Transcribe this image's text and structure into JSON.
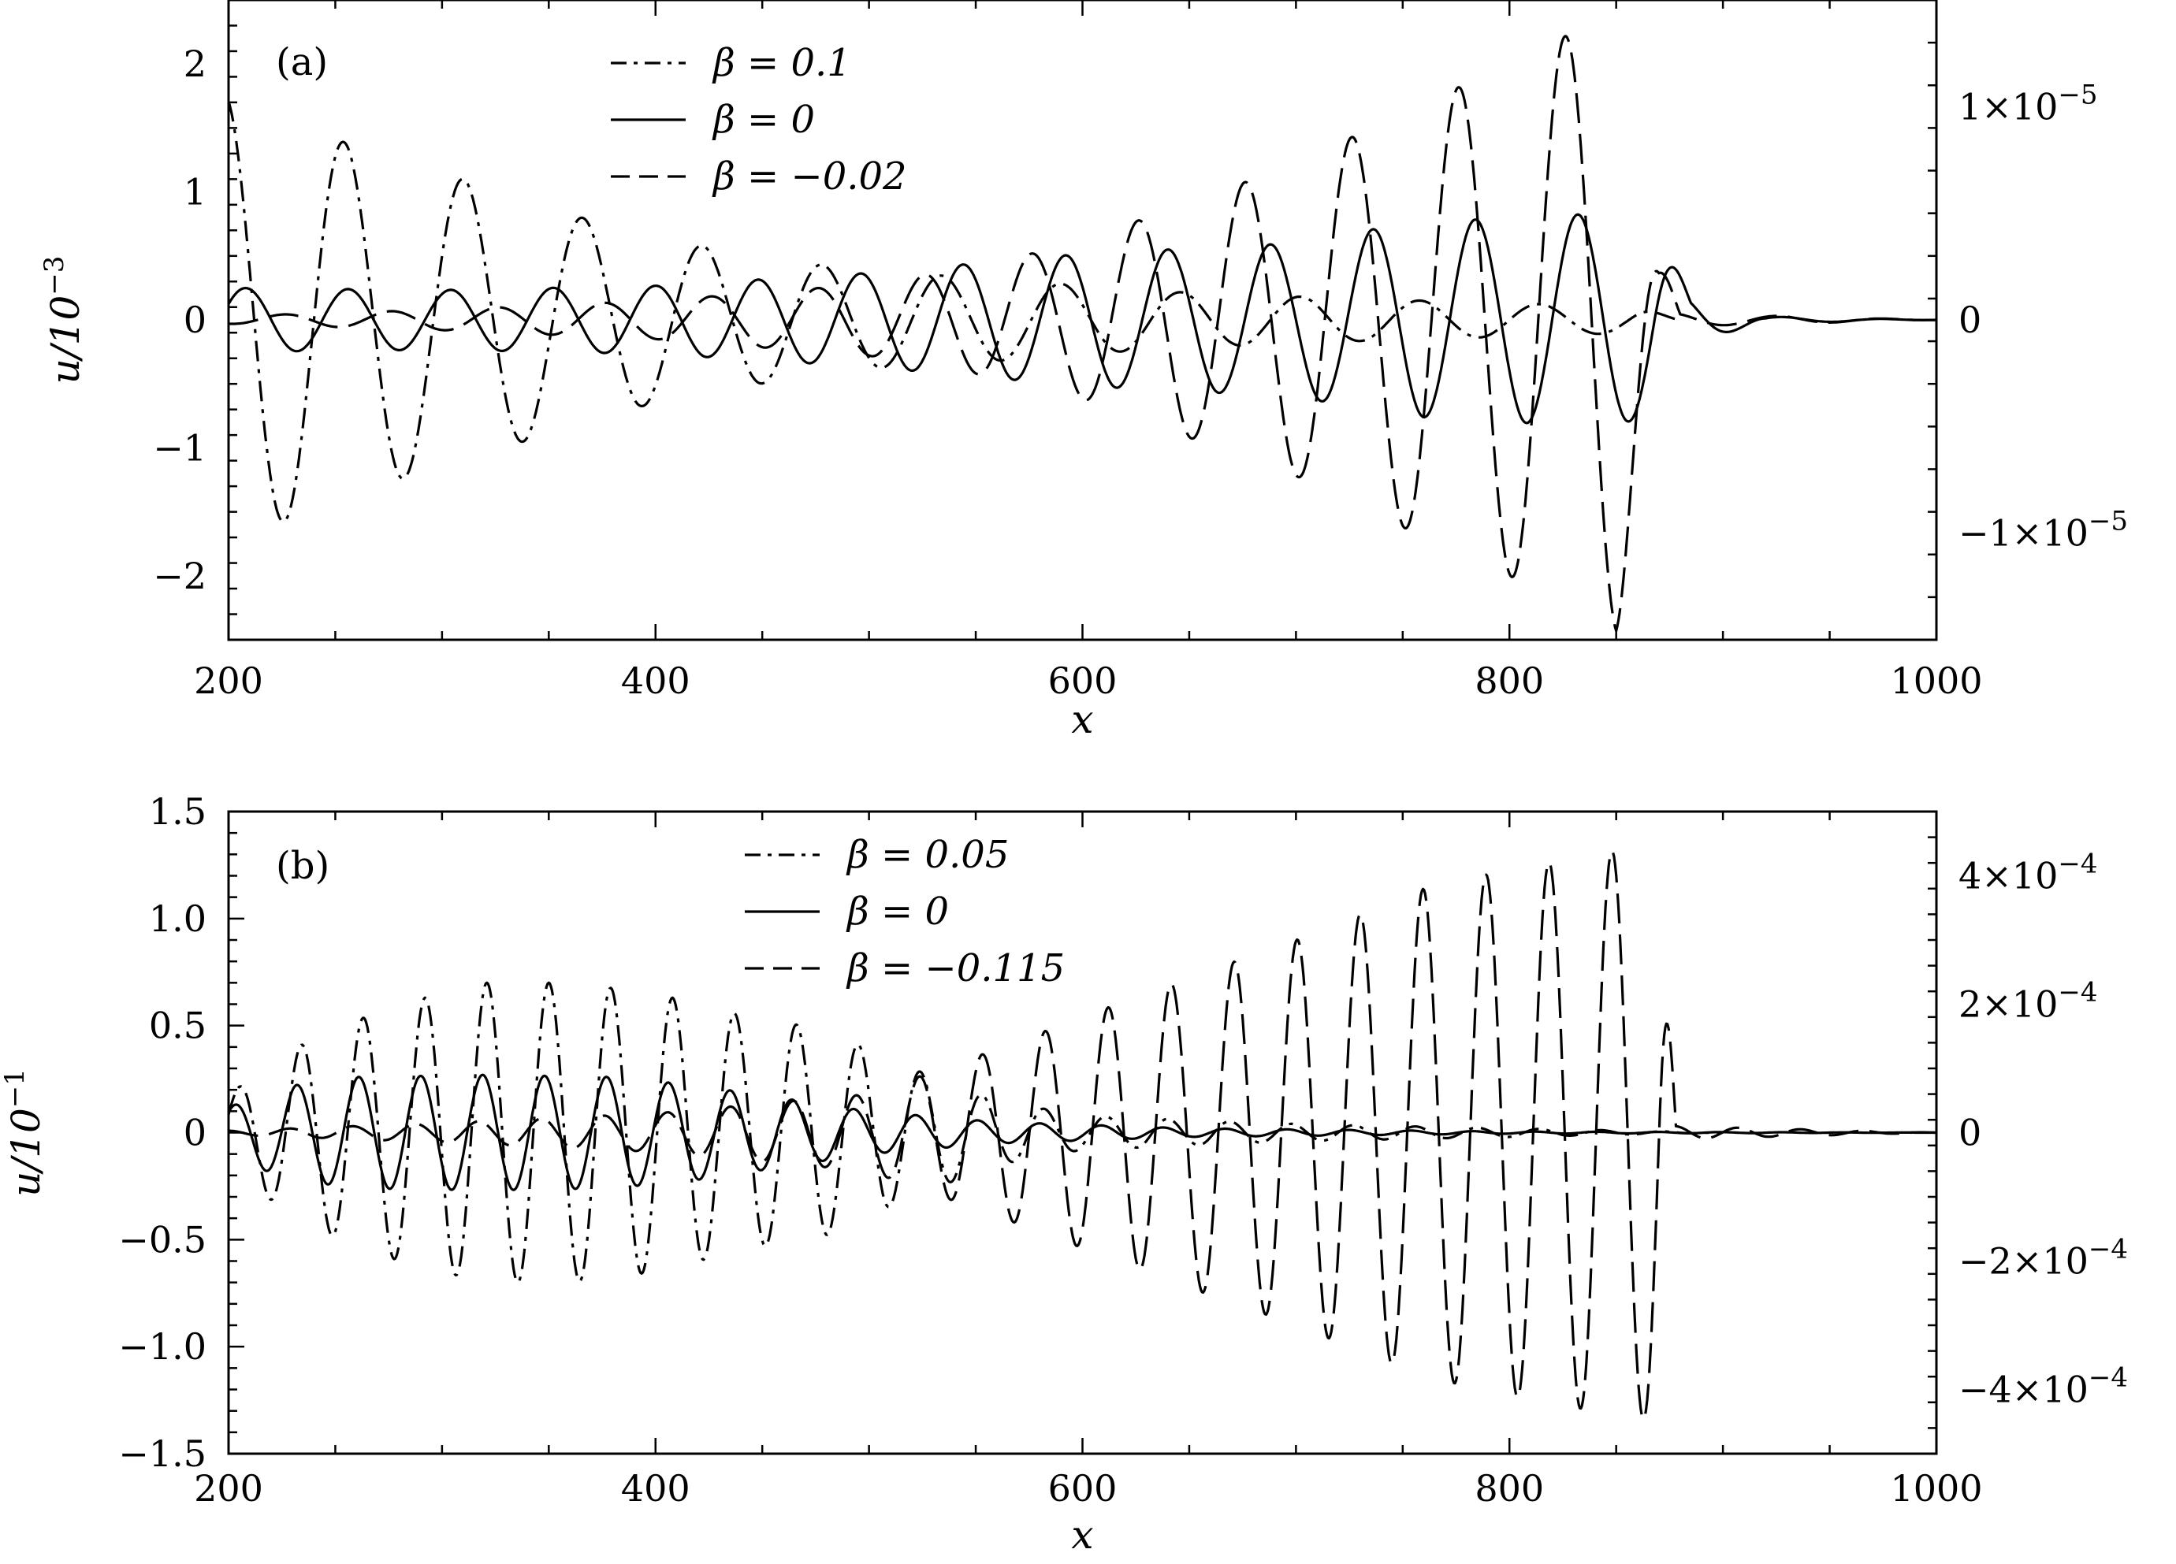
{
  "chart_data": [
    {
      "type": "line",
      "panel_label": "(a)",
      "xlabel": "x",
      "ylabel": "u/10",
      "ylabel_exponent": "−3",
      "xlim": [
        200,
        1000
      ],
      "ylim": [
        -2.5,
        2.5
      ],
      "right_ylim": [
        -1.5e-05,
        1.5e-05
      ],
      "x_ticks": [
        "200",
        "400",
        "600",
        "800",
        "1000"
      ],
      "y_ticks": [
        {
          "v": -2,
          "label": "−2"
        },
        {
          "v": -1,
          "label": "−1"
        },
        {
          "v": 0,
          "label": "0"
        },
        {
          "v": 1,
          "label": "1"
        },
        {
          "v": 2,
          "label": "2"
        }
      ],
      "right_ticks": [
        {
          "v": -1e-05,
          "label": "−1×10",
          "exp": "−5"
        },
        {
          "v": 0,
          "label": "0",
          "exp": ""
        },
        {
          "v": 1e-05,
          "label": "1×10",
          "exp": "−5"
        }
      ],
      "legend_position": "top-center",
      "series": [
        {
          "name": "β = 0.1",
          "style": "dashdot",
          "axis": "left",
          "x_start": 200,
          "x_end": 880,
          "wavelength": 56,
          "phase_x": 198,
          "envelope": [
            [
              200,
              1.75
            ],
            [
              260,
              1.35
            ],
            [
              320,
              1.05
            ],
            [
              380,
              0.72
            ],
            [
              440,
              0.52
            ],
            [
              500,
              0.38
            ],
            [
              560,
              0.32
            ],
            [
              640,
              0.22
            ],
            [
              720,
              0.17
            ],
            [
              800,
              0.13
            ],
            [
              860,
              0.1
            ],
            [
              880,
              0.0
            ]
          ]
        },
        {
          "name": "β = 0",
          "style": "solid",
          "axis": "right",
          "x_start": 200,
          "x_end": 1000,
          "wavelength": 48,
          "phase_x": 592,
          "envelope": [
            [
              200,
              1.5e-06
            ],
            [
              300,
              1.4e-06
            ],
            [
              400,
              1.6e-06
            ],
            [
              500,
              2.2e-06
            ],
            [
              600,
              3.1e-06
            ],
            [
              700,
              3.6e-06
            ],
            [
              750,
              4.5e-06
            ],
            [
              800,
              4.8e-06
            ],
            [
              845,
              5e-06
            ],
            [
              868,
              4.5e-06
            ],
            [
              885,
              1e-06
            ],
            [
              920,
              1.5e-07
            ],
            [
              1000,
              0.0
            ]
          ]
        },
        {
          "name": "β = −0.02",
          "style": "dashed",
          "axis": "left",
          "x_start": 200,
          "x_end": 1000,
          "wavelength": 50,
          "phase_x": 626,
          "envelope": [
            [
              200,
              0.03
            ],
            [
              300,
              0.08
            ],
            [
              400,
              0.15
            ],
            [
              500,
              0.28
            ],
            [
              560,
              0.45
            ],
            [
              600,
              0.62
            ],
            [
              650,
              0.92
            ],
            [
              700,
              1.22
            ],
            [
              750,
              1.62
            ],
            [
              800,
              2.0
            ],
            [
              830,
              2.25
            ],
            [
              850,
              2.45
            ],
            [
              870,
              0.5
            ],
            [
              880,
              0.05
            ],
            [
              1000,
              0.0
            ]
          ]
        }
      ]
    },
    {
      "type": "line",
      "panel_label": "(b)",
      "xlabel": "x",
      "ylabel": "u/10",
      "ylabel_exponent": "−1",
      "xlim": [
        200,
        1000
      ],
      "ylim": [
        -1.5,
        1.5
      ],
      "right_ylim": [
        -0.0005,
        0.0005
      ],
      "x_ticks": [
        "200",
        "400",
        "600",
        "800",
        "1000"
      ],
      "y_ticks": [
        {
          "v": -1.5,
          "label": "−1.5"
        },
        {
          "v": -1.0,
          "label": "−1.0"
        },
        {
          "v": -0.5,
          "label": "−0.5"
        },
        {
          "v": 0,
          "label": "0"
        },
        {
          "v": 0.5,
          "label": "0.5"
        },
        {
          "v": 1.0,
          "label": "1.0"
        },
        {
          "v": 1.5,
          "label": "1.5"
        }
      ],
      "right_ticks": [
        {
          "v": -0.0004,
          "label": "−4×10",
          "exp": "−4"
        },
        {
          "v": -0.0002,
          "label": "−2×10",
          "exp": "−4"
        },
        {
          "v": 0,
          "label": "0",
          "exp": ""
        },
        {
          "v": 0.0002,
          "label": "2×10",
          "exp": "−4"
        },
        {
          "v": 0.0004,
          "label": "4×10",
          "exp": "−4"
        }
      ],
      "legend_position": "top-center",
      "series": [
        {
          "name": "β = 0.05",
          "style": "dashdot",
          "axis": "left",
          "x_start": 200,
          "x_end": 900,
          "wavelength": 29,
          "phase_x": 292,
          "envelope": [
            [
              200,
              0.18
            ],
            [
              240,
              0.45
            ],
            [
              280,
              0.6
            ],
            [
              320,
              0.7
            ],
            [
              360,
              0.7
            ],
            [
              400,
              0.65
            ],
            [
              440,
              0.55
            ],
            [
              480,
              0.48
            ],
            [
              520,
              0.3
            ],
            [
              560,
              0.15
            ],
            [
              600,
              0.08
            ],
            [
              700,
              0.04
            ],
            [
              900,
              0.0
            ]
          ]
        },
        {
          "name": "β = 0",
          "style": "solid",
          "axis": "left",
          "x_start": 200,
          "x_end": 1000,
          "wavelength": 29,
          "phase_x": 261,
          "envelope": [
            [
              200,
              0.12
            ],
            [
              230,
              0.22
            ],
            [
              260,
              0.26
            ],
            [
              320,
              0.27
            ],
            [
              380,
              0.26
            ],
            [
              420,
              0.22
            ],
            [
              460,
              0.16
            ],
            [
              500,
              0.1
            ],
            [
              560,
              0.05
            ],
            [
              650,
              0.02
            ],
            [
              800,
              0.005
            ],
            [
              1000,
              0.0
            ]
          ]
        },
        {
          "name": "β = −0.115",
          "style": "dashed",
          "axis": "right",
          "x_start": 200,
          "x_end": 1000,
          "wavelength": 29.5,
          "phase_x": 612,
          "envelope": [
            [
              200,
              3e-06
            ],
            [
              300,
              1.5e-05
            ],
            [
              400,
              3e-05
            ],
            [
              500,
              6e-05
            ],
            [
              560,
              0.00013
            ],
            [
              600,
              0.00018
            ],
            [
              640,
              0.00023
            ],
            [
              700,
              0.0003
            ],
            [
              760,
              0.00038
            ],
            [
              800,
              0.00041
            ],
            [
              850,
              0.00044
            ],
            [
              870,
              0.00045
            ],
            [
              878,
              1e-05
            ],
            [
              1000,
              0.0
            ]
          ]
        }
      ]
    }
  ]
}
